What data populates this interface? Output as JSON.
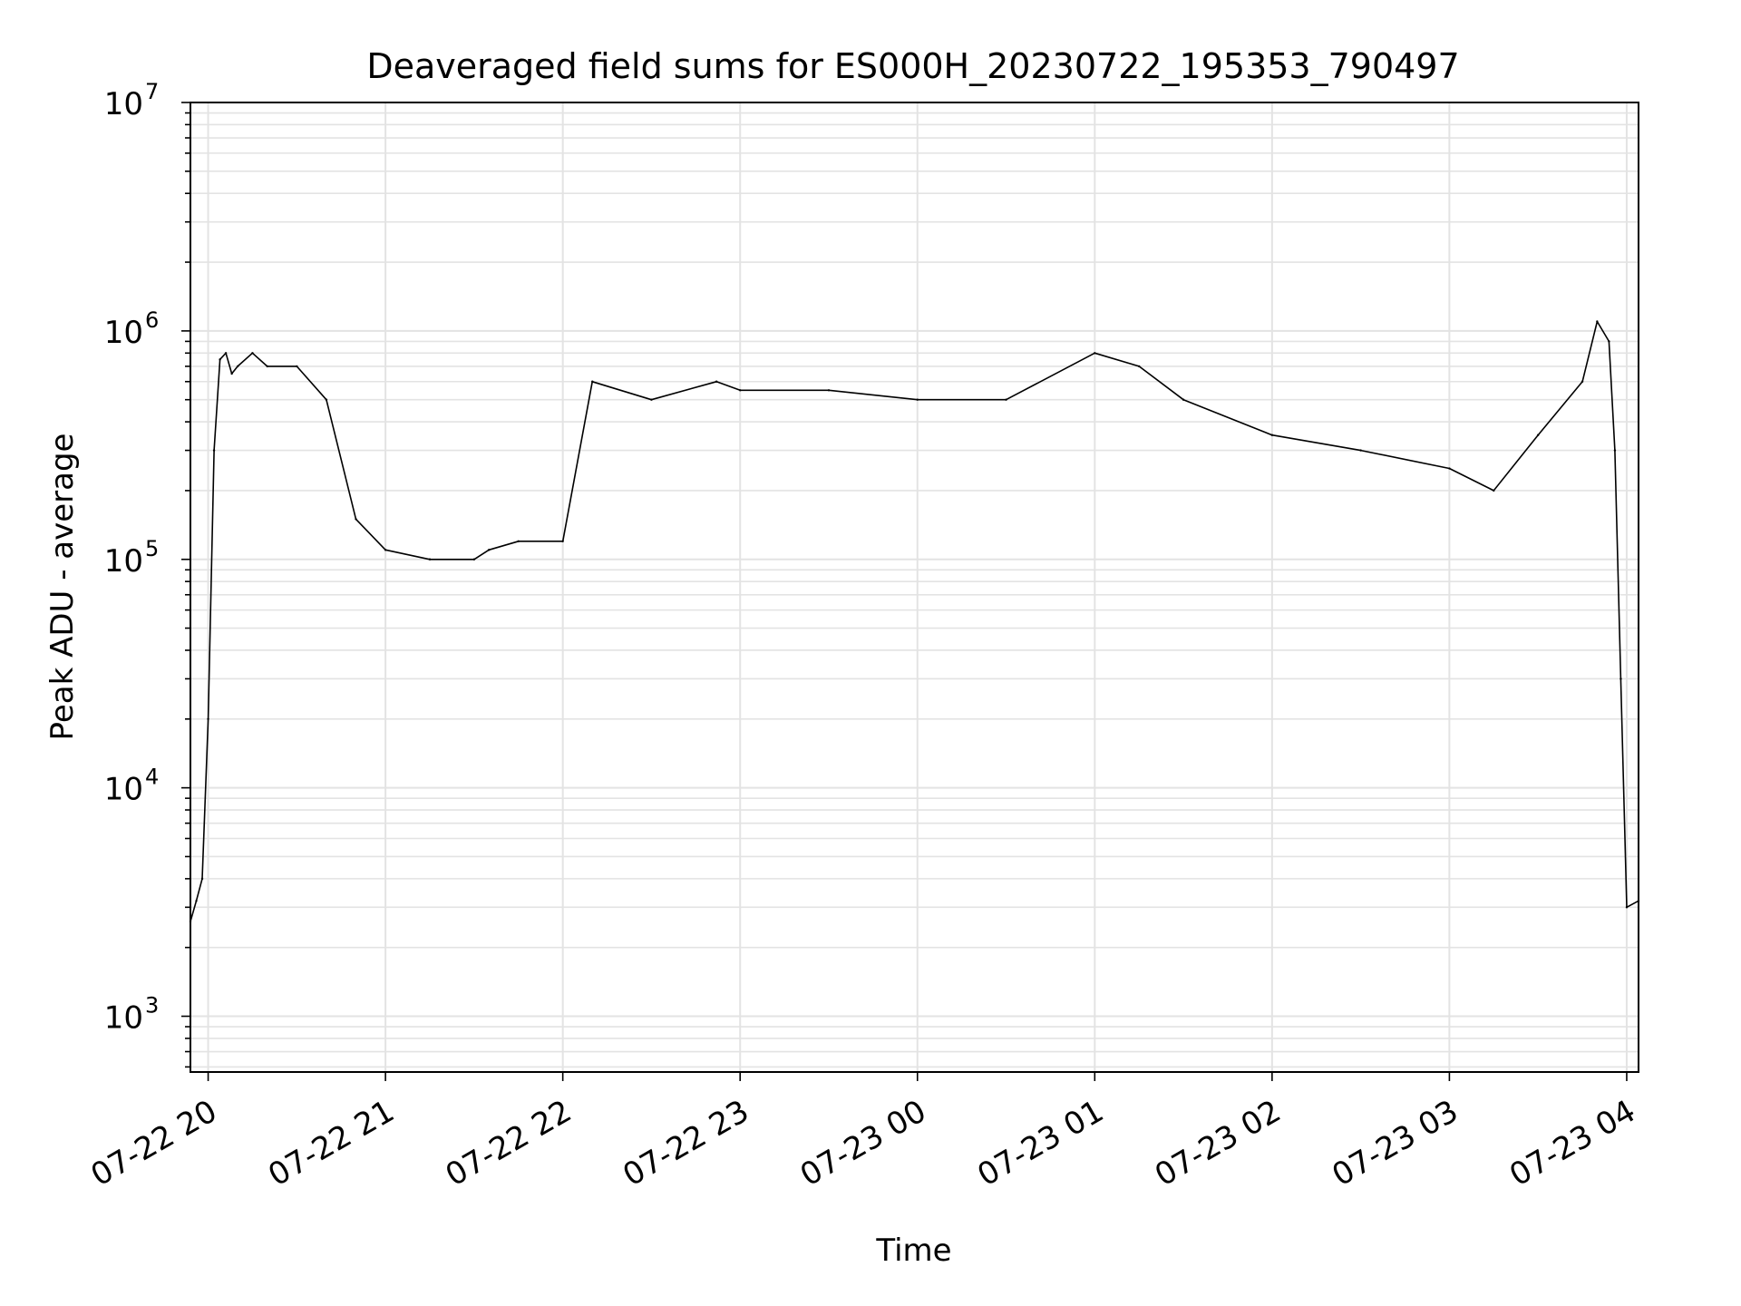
{
  "chart_data": {
    "type": "line",
    "title": "Deaveraged field sums for ES000H_20230722_195353_790497",
    "xlabel": "Time",
    "ylabel": "Peak ADU - average",
    "yscale": "log",
    "ylim": [
      570,
      10000000
    ],
    "xlim": [
      "2023-07-22 19:54",
      "2023-07-23 04:04"
    ],
    "grid": "on (major and minor)",
    "line_color": "#000000",
    "x_ticks": [
      "07-22 20",
      "07-22 21",
      "07-22 22",
      "07-22 23",
      "07-23 00",
      "07-23 01",
      "07-23 02",
      "07-23 03",
      "07-23 04"
    ],
    "y_ticks": [
      {
        "base": "10",
        "exp": "3",
        "value": 1000
      },
      {
        "base": "10",
        "exp": "4",
        "value": 10000
      },
      {
        "base": "10",
        "exp": "5",
        "value": 100000
      },
      {
        "base": "10",
        "exp": "6",
        "value": 1000000
      },
      {
        "base": "10",
        "exp": "7",
        "value": 10000000
      }
    ],
    "series": [
      {
        "x": [
          "2023-07-22 19:54",
          "2023-07-22 19:56",
          "2023-07-22 19:58",
          "2023-07-22 20:00",
          "2023-07-22 20:02",
          "2023-07-22 20:04",
          "2023-07-22 20:06",
          "2023-07-22 20:08",
          "2023-07-22 20:10",
          "2023-07-22 20:15",
          "2023-07-22 20:20",
          "2023-07-22 20:30",
          "2023-07-22 20:40",
          "2023-07-22 20:50",
          "2023-07-22 21:00",
          "2023-07-22 21:15",
          "2023-07-22 21:30",
          "2023-07-22 21:35",
          "2023-07-22 21:45",
          "2023-07-22 22:00",
          "2023-07-22 22:10",
          "2023-07-22 22:30",
          "2023-07-22 22:52",
          "2023-07-22 23:00",
          "2023-07-22 23:30",
          "2023-07-23 00:00",
          "2023-07-23 00:30",
          "2023-07-23 01:00",
          "2023-07-23 01:15",
          "2023-07-23 01:30",
          "2023-07-23 02:00",
          "2023-07-23 02:30",
          "2023-07-23 03:00",
          "2023-07-23 03:15",
          "2023-07-23 03:30",
          "2023-07-23 03:45",
          "2023-07-23 03:50",
          "2023-07-23 03:54",
          "2023-07-23 03:56",
          "2023-07-23 03:58",
          "2023-07-23 04:00",
          "2023-07-23 04:04"
        ],
        "y": [
          2600,
          3200,
          4000,
          20000,
          300000,
          750000,
          800000,
          650000,
          700000,
          800000,
          700000,
          700000,
          500000,
          150000,
          110000,
          100000,
          100000,
          110000,
          120000,
          120000,
          600000,
          500000,
          600000,
          550000,
          550000,
          500000,
          500000,
          800000,
          700000,
          500000,
          350000,
          300000,
          250000,
          200000,
          350000,
          600000,
          1100000,
          900000,
          300000,
          30000,
          3000,
          3200
        ]
      }
    ]
  }
}
